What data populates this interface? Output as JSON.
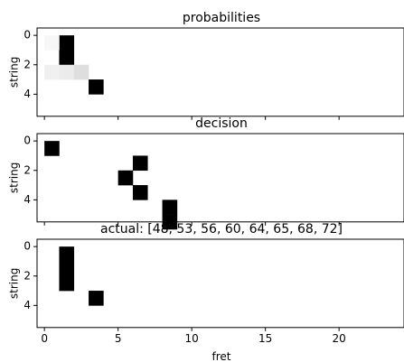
{
  "chart_data": [
    {
      "type": "heatmap",
      "title": "probabilities",
      "xlabel": "",
      "ylabel": "string",
      "xlim": [
        -0.5,
        24.5
      ],
      "ylim": [
        5.5,
        -0.5
      ],
      "yticks": [
        "0",
        "2",
        "4"
      ],
      "xticks": [
        "",
        "",
        "",
        "",
        ""
      ],
      "cells": [
        {
          "fret": 1,
          "string": 0,
          "value": 1.0
        },
        {
          "fret": 0,
          "string": 0,
          "value": 0.03
        },
        {
          "fret": 1,
          "string": 1,
          "value": 1.0
        },
        {
          "fret": 0,
          "string": 2,
          "value": 0.06
        },
        {
          "fret": 1,
          "string": 2,
          "value": 0.08
        },
        {
          "fret": 2,
          "string": 2,
          "value": 0.13
        },
        {
          "fret": 3,
          "string": 3,
          "value": 1.0
        }
      ]
    },
    {
      "type": "heatmap",
      "title": "decision",
      "xlabel": "",
      "ylabel": "string",
      "xlim": [
        -0.5,
        24.5
      ],
      "ylim": [
        5.5,
        -0.5
      ],
      "yticks": [
        "0",
        "2",
        "4"
      ],
      "xticks": [
        "",
        "",
        "",
        "",
        ""
      ],
      "cells": [
        {
          "fret": 0,
          "string": 0,
          "value": 1.0
        },
        {
          "fret": 6,
          "string": 1,
          "value": 1.0
        },
        {
          "fret": 5,
          "string": 2,
          "value": 1.0
        },
        {
          "fret": 6,
          "string": 3,
          "value": 1.0
        },
        {
          "fret": 8,
          "string": 4,
          "value": 1.0
        },
        {
          "fret": 8,
          "string": 5,
          "value": 1.0
        }
      ]
    },
    {
      "type": "heatmap",
      "title": "actual: [48, 53, 56, 60, 64, 65, 68, 72]",
      "xlabel": "fret",
      "ylabel": "string",
      "xlim": [
        -0.5,
        24.5
      ],
      "ylim": [
        5.5,
        -0.5
      ],
      "yticks": [
        "0",
        "2",
        "4"
      ],
      "xticks": [
        "0",
        "5",
        "10",
        "15",
        "20"
      ],
      "cells": [
        {
          "fret": 1,
          "string": 0,
          "value": 1.0
        },
        {
          "fret": 1,
          "string": 1,
          "value": 1.0
        },
        {
          "fret": 1,
          "string": 2,
          "value": 1.0
        },
        {
          "fret": 3,
          "string": 3,
          "value": 1.0
        }
      ]
    }
  ]
}
